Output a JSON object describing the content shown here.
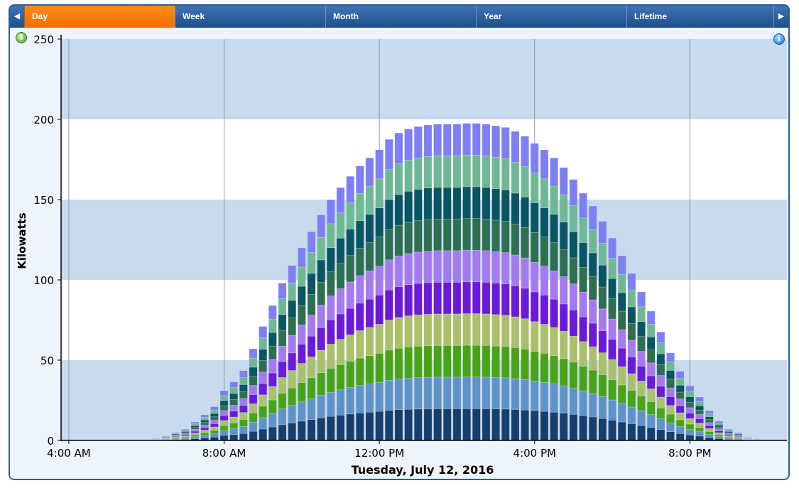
{
  "tabs": [
    {
      "label": "Day",
      "active": true
    },
    {
      "label": "Week",
      "active": false
    },
    {
      "label": "Month",
      "active": false
    },
    {
      "label": "Year",
      "active": false
    },
    {
      "label": "Lifetime",
      "active": false
    }
  ],
  "nav": {
    "prev_icon": "left-arrow-icon",
    "next_icon": "right-arrow-icon"
  },
  "icons": {
    "expand": "expand-icon",
    "info": "info-icon"
  },
  "colors": {
    "tab_active": "#ee7700",
    "tab_bar": "#2a5c9a",
    "band": "#c7daee",
    "plot_white": "#ffffff"
  },
  "chart_data": {
    "type": "bar",
    "stacked": true,
    "title": "",
    "ylabel": "Kilowatts",
    "xlabel": "Tuesday, July 12, 2016",
    "ylim": [
      0,
      250
    ],
    "yticks": [
      "0",
      "50",
      "100",
      "150",
      "200",
      "250"
    ],
    "xticks": [
      "4:00 AM",
      "8:00 AM",
      "12:00 PM",
      "4:00 PM",
      "8:00 PM"
    ],
    "xtick_hours": [
      4,
      8,
      12,
      16,
      20
    ],
    "xlim_hours": [
      3.8,
      22.5
    ],
    "bar_interval_minutes": 15,
    "first_bar_hour": 6.0,
    "legend": "none",
    "grid": true,
    "series_count": 10,
    "series_colors": [
      "#163f6e",
      "#5f92c8",
      "#48a417",
      "#aac06a",
      "#6a1ad8",
      "#a57af0",
      "#2e6f52",
      "#085564",
      "#6fb894",
      "#7e7ff5"
    ],
    "totals": [
      0.5,
      1.5,
      3,
      5,
      7,
      11.5,
      16,
      21,
      31,
      36.5,
      43.5,
      57,
      71,
      84,
      98,
      109,
      120,
      130,
      140.5,
      150,
      157.5,
      164.5,
      171,
      176,
      181,
      187.5,
      191.5,
      194,
      195.5,
      196.5,
      197,
      197,
      197,
      197.5,
      197.5,
      197,
      196,
      195,
      192.5,
      189.5,
      185,
      181,
      176,
      170,
      162.5,
      154,
      146,
      136.5,
      126,
      115,
      104,
      92.5,
      80.5,
      67.5,
      54.5,
      43,
      34,
      27,
      18.5,
      12,
      7,
      5,
      2,
      1,
      0.5,
      0
    ]
  }
}
